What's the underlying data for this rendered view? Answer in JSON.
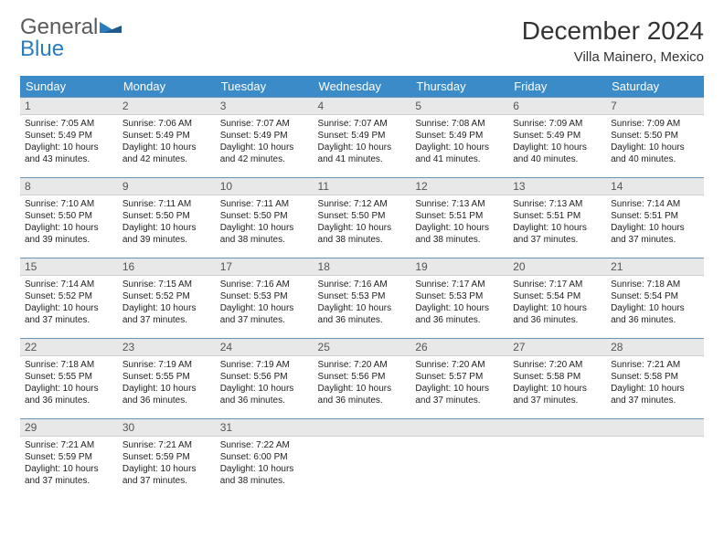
{
  "logo": {
    "word1": "General",
    "word2": "Blue"
  },
  "title": "December 2024",
  "location": "Villa Mainero, Mexico",
  "colors": {
    "header_bg": "#3b8bc9",
    "header_text": "#ffffff",
    "daynum_bg": "#e8e8e8",
    "row_border": "#6a93b8",
    "logo_gray": "#5a5a5a",
    "logo_blue": "#2b7bbf"
  },
  "weekdays": [
    "Sunday",
    "Monday",
    "Tuesday",
    "Wednesday",
    "Thursday",
    "Friday",
    "Saturday"
  ],
  "days": [
    {
      "n": "1",
      "sunrise": "Sunrise: 7:05 AM",
      "sunset": "Sunset: 5:49 PM",
      "day": "Daylight: 10 hours and 43 minutes."
    },
    {
      "n": "2",
      "sunrise": "Sunrise: 7:06 AM",
      "sunset": "Sunset: 5:49 PM",
      "day": "Daylight: 10 hours and 42 minutes."
    },
    {
      "n": "3",
      "sunrise": "Sunrise: 7:07 AM",
      "sunset": "Sunset: 5:49 PM",
      "day": "Daylight: 10 hours and 42 minutes."
    },
    {
      "n": "4",
      "sunrise": "Sunrise: 7:07 AM",
      "sunset": "Sunset: 5:49 PM",
      "day": "Daylight: 10 hours and 41 minutes."
    },
    {
      "n": "5",
      "sunrise": "Sunrise: 7:08 AM",
      "sunset": "Sunset: 5:49 PM",
      "day": "Daylight: 10 hours and 41 minutes."
    },
    {
      "n": "6",
      "sunrise": "Sunrise: 7:09 AM",
      "sunset": "Sunset: 5:49 PM",
      "day": "Daylight: 10 hours and 40 minutes."
    },
    {
      "n": "7",
      "sunrise": "Sunrise: 7:09 AM",
      "sunset": "Sunset: 5:50 PM",
      "day": "Daylight: 10 hours and 40 minutes."
    },
    {
      "n": "8",
      "sunrise": "Sunrise: 7:10 AM",
      "sunset": "Sunset: 5:50 PM",
      "day": "Daylight: 10 hours and 39 minutes."
    },
    {
      "n": "9",
      "sunrise": "Sunrise: 7:11 AM",
      "sunset": "Sunset: 5:50 PM",
      "day": "Daylight: 10 hours and 39 minutes."
    },
    {
      "n": "10",
      "sunrise": "Sunrise: 7:11 AM",
      "sunset": "Sunset: 5:50 PM",
      "day": "Daylight: 10 hours and 38 minutes."
    },
    {
      "n": "11",
      "sunrise": "Sunrise: 7:12 AM",
      "sunset": "Sunset: 5:50 PM",
      "day": "Daylight: 10 hours and 38 minutes."
    },
    {
      "n": "12",
      "sunrise": "Sunrise: 7:13 AM",
      "sunset": "Sunset: 5:51 PM",
      "day": "Daylight: 10 hours and 38 minutes."
    },
    {
      "n": "13",
      "sunrise": "Sunrise: 7:13 AM",
      "sunset": "Sunset: 5:51 PM",
      "day": "Daylight: 10 hours and 37 minutes."
    },
    {
      "n": "14",
      "sunrise": "Sunrise: 7:14 AM",
      "sunset": "Sunset: 5:51 PM",
      "day": "Daylight: 10 hours and 37 minutes."
    },
    {
      "n": "15",
      "sunrise": "Sunrise: 7:14 AM",
      "sunset": "Sunset: 5:52 PM",
      "day": "Daylight: 10 hours and 37 minutes."
    },
    {
      "n": "16",
      "sunrise": "Sunrise: 7:15 AM",
      "sunset": "Sunset: 5:52 PM",
      "day": "Daylight: 10 hours and 37 minutes."
    },
    {
      "n": "17",
      "sunrise": "Sunrise: 7:16 AM",
      "sunset": "Sunset: 5:53 PM",
      "day": "Daylight: 10 hours and 37 minutes."
    },
    {
      "n": "18",
      "sunrise": "Sunrise: 7:16 AM",
      "sunset": "Sunset: 5:53 PM",
      "day": "Daylight: 10 hours and 36 minutes."
    },
    {
      "n": "19",
      "sunrise": "Sunrise: 7:17 AM",
      "sunset": "Sunset: 5:53 PM",
      "day": "Daylight: 10 hours and 36 minutes."
    },
    {
      "n": "20",
      "sunrise": "Sunrise: 7:17 AM",
      "sunset": "Sunset: 5:54 PM",
      "day": "Daylight: 10 hours and 36 minutes."
    },
    {
      "n": "21",
      "sunrise": "Sunrise: 7:18 AM",
      "sunset": "Sunset: 5:54 PM",
      "day": "Daylight: 10 hours and 36 minutes."
    },
    {
      "n": "22",
      "sunrise": "Sunrise: 7:18 AM",
      "sunset": "Sunset: 5:55 PM",
      "day": "Daylight: 10 hours and 36 minutes."
    },
    {
      "n": "23",
      "sunrise": "Sunrise: 7:19 AM",
      "sunset": "Sunset: 5:55 PM",
      "day": "Daylight: 10 hours and 36 minutes."
    },
    {
      "n": "24",
      "sunrise": "Sunrise: 7:19 AM",
      "sunset": "Sunset: 5:56 PM",
      "day": "Daylight: 10 hours and 36 minutes."
    },
    {
      "n": "25",
      "sunrise": "Sunrise: 7:20 AM",
      "sunset": "Sunset: 5:56 PM",
      "day": "Daylight: 10 hours and 36 minutes."
    },
    {
      "n": "26",
      "sunrise": "Sunrise: 7:20 AM",
      "sunset": "Sunset: 5:57 PM",
      "day": "Daylight: 10 hours and 37 minutes."
    },
    {
      "n": "27",
      "sunrise": "Sunrise: 7:20 AM",
      "sunset": "Sunset: 5:58 PM",
      "day": "Daylight: 10 hours and 37 minutes."
    },
    {
      "n": "28",
      "sunrise": "Sunrise: 7:21 AM",
      "sunset": "Sunset: 5:58 PM",
      "day": "Daylight: 10 hours and 37 minutes."
    },
    {
      "n": "29",
      "sunrise": "Sunrise: 7:21 AM",
      "sunset": "Sunset: 5:59 PM",
      "day": "Daylight: 10 hours and 37 minutes."
    },
    {
      "n": "30",
      "sunrise": "Sunrise: 7:21 AM",
      "sunset": "Sunset: 5:59 PM",
      "day": "Daylight: 10 hours and 37 minutes."
    },
    {
      "n": "31",
      "sunrise": "Sunrise: 7:22 AM",
      "sunset": "Sunset: 6:00 PM",
      "day": "Daylight: 10 hours and 38 minutes."
    }
  ]
}
